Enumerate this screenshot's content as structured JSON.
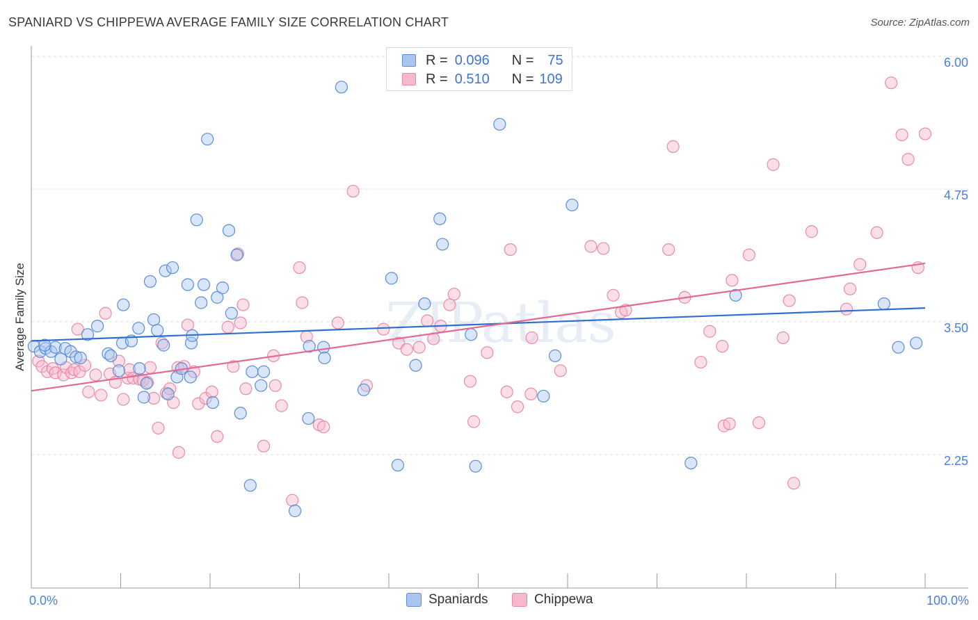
{
  "title": "SPANIARD VS CHIPPEWA AVERAGE FAMILY SIZE CORRELATION CHART",
  "source": "Source: ZipAtlas.com",
  "watermark": "ZIPatlas",
  "colors": {
    "blue_fill": "#aac6f0",
    "blue_stroke": "#5b8dd8",
    "blue_line": "#2f6fd0",
    "pink_fill": "#f6b8cb",
    "pink_stroke": "#e88aa8",
    "pink_line": "#e26a94",
    "grid": "#dddddd",
    "axis_text": "#4a7fd4"
  },
  "legend": {
    "rows": [
      {
        "r_label": "R =",
        "r_value": "0.096",
        "n_label": "N =",
        "n_value": "75"
      },
      {
        "r_label": "R =",
        "r_value": "0.510",
        "n_label": "N =",
        "n_value": "109"
      }
    ]
  },
  "bottom_legend": {
    "series1": "Spaniards",
    "series2": "Chippewa"
  },
  "chart_data": {
    "type": "scatter",
    "title": "SPANIARD VS CHIPPEWA AVERAGE FAMILY SIZE CORRELATION CHART",
    "xlabel": "",
    "ylabel": "Average Family Size",
    "xlim": [
      0,
      100
    ],
    "ylim": [
      1.0,
      6.1
    ],
    "x_tick_labels": [
      "0.0%",
      "100.0%"
    ],
    "y_ticks": [
      2.25,
      3.5,
      4.75,
      6.0
    ],
    "y_tick_labels": [
      "2.25",
      "3.50",
      "4.75",
      "6.00"
    ],
    "grid": "horizontal dashed",
    "series": [
      {
        "name": "Spaniards",
        "trend": {
          "x": [
            0,
            100
          ],
          "y": [
            3.32,
            3.63
          ]
        },
        "points": [
          [
            0.3,
            3.27
          ],
          [
            1.0,
            3.22
          ],
          [
            1.6,
            3.25
          ],
          [
            2.2,
            3.22
          ],
          [
            2.7,
            3.26
          ],
          [
            3.3,
            3.15
          ],
          [
            3.8,
            3.25
          ],
          [
            4.4,
            3.22
          ],
          [
            5.0,
            3.17
          ],
          [
            5.5,
            3.16
          ],
          [
            6.3,
            3.38
          ],
          [
            7.4,
            3.46
          ],
          [
            8.6,
            3.2
          ],
          [
            8.9,
            3.18
          ],
          [
            9.8,
            3.04
          ],
          [
            10.2,
            3.3
          ],
          [
            10.3,
            3.66
          ],
          [
            11.2,
            3.32
          ],
          [
            12.0,
            3.44
          ],
          [
            12.1,
            3.06
          ],
          [
            12.6,
            2.79
          ],
          [
            12.9,
            2.92
          ],
          [
            13.3,
            3.88
          ],
          [
            13.7,
            3.52
          ],
          [
            14.1,
            3.42
          ],
          [
            14.8,
            3.28
          ],
          [
            15.0,
            3.98
          ],
          [
            15.3,
            2.82
          ],
          [
            15.8,
            4.01
          ],
          [
            16.3,
            2.98
          ],
          [
            16.8,
            3.06
          ],
          [
            17.5,
            3.85
          ],
          [
            17.8,
            2.98
          ],
          [
            17.9,
            3.3
          ],
          [
            18.0,
            3.37
          ],
          [
            18.5,
            4.46
          ],
          [
            19.0,
            3.68
          ],
          [
            19.3,
            3.85
          ],
          [
            19.7,
            5.22
          ],
          [
            20.3,
            2.74
          ],
          [
            20.8,
            3.73
          ],
          [
            21.4,
            3.82
          ],
          [
            22.1,
            4.36
          ],
          [
            22.4,
            3.58
          ],
          [
            23.0,
            4.13
          ],
          [
            23.4,
            2.64
          ],
          [
            24.5,
            1.96
          ],
          [
            24.7,
            3.03
          ],
          [
            25.7,
            2.9
          ],
          [
            26.0,
            3.03
          ],
          [
            29.5,
            1.72
          ],
          [
            31.0,
            2.59
          ],
          [
            31.1,
            3.27
          ],
          [
            32.7,
            3.26
          ],
          [
            32.8,
            3.16
          ],
          [
            34.7,
            5.71
          ],
          [
            37.2,
            2.86
          ],
          [
            40.3,
            3.91
          ],
          [
            41.0,
            2.15
          ],
          [
            43.0,
            3.09
          ],
          [
            44.0,
            3.67
          ],
          [
            45.7,
            4.47
          ],
          [
            46.0,
            4.23
          ],
          [
            49.2,
            3.38
          ],
          [
            49.7,
            2.14
          ],
          [
            52.4,
            5.36
          ],
          [
            57.3,
            2.8
          ],
          [
            58.6,
            3.18
          ],
          [
            60.5,
            4.6
          ],
          [
            73.8,
            2.17
          ],
          [
            78.8,
            3.75
          ],
          [
            95.4,
            3.67
          ],
          [
            97.0,
            3.26
          ],
          [
            99.0,
            3.3
          ],
          [
            1.5,
            3.28
          ]
        ]
      },
      {
        "name": "Chippewa",
        "trend": {
          "x": [
            0,
            100
          ],
          "y": [
            2.85,
            4.05
          ]
        },
        "points": [
          [
            0.8,
            3.13
          ],
          [
            1.2,
            3.08
          ],
          [
            1.8,
            3.03
          ],
          [
            2.4,
            3.06
          ],
          [
            2.7,
            3.02
          ],
          [
            3.6,
            3.0
          ],
          [
            3.9,
            3.07
          ],
          [
            4.5,
            3.02
          ],
          [
            4.8,
            3.05
          ],
          [
            5.2,
            3.43
          ],
          [
            5.4,
            3.03
          ],
          [
            6.0,
            3.09
          ],
          [
            6.4,
            2.84
          ],
          [
            7.2,
            3.0
          ],
          [
            7.8,
            2.81
          ],
          [
            8.3,
            3.58
          ],
          [
            8.8,
            3.01
          ],
          [
            9.4,
            2.93
          ],
          [
            9.8,
            3.13
          ],
          [
            10.3,
            2.77
          ],
          [
            10.8,
            2.97
          ],
          [
            11.0,
            3.05
          ],
          [
            11.4,
            2.97
          ],
          [
            12.1,
            2.96
          ],
          [
            12.5,
            2.95
          ],
          [
            13.0,
            2.93
          ],
          [
            13.3,
            3.07
          ],
          [
            13.7,
            2.78
          ],
          [
            14.2,
            2.5
          ],
          [
            14.6,
            3.3
          ],
          [
            15.1,
            2.83
          ],
          [
            15.5,
            2.87
          ],
          [
            15.9,
            2.74
          ],
          [
            16.4,
            3.07
          ],
          [
            16.5,
            2.27
          ],
          [
            17.1,
            3.08
          ],
          [
            17.5,
            3.47
          ],
          [
            18.2,
            3.03
          ],
          [
            18.7,
            2.73
          ],
          [
            19.5,
            2.78
          ],
          [
            20.2,
            2.84
          ],
          [
            20.8,
            2.42
          ],
          [
            22.0,
            3.45
          ],
          [
            22.6,
            3.08
          ],
          [
            23.1,
            4.14
          ],
          [
            23.4,
            3.49
          ],
          [
            23.7,
            3.66
          ],
          [
            24.0,
            2.87
          ],
          [
            26.0,
            2.33
          ],
          [
            27.1,
            3.18
          ],
          [
            27.3,
            2.9
          ],
          [
            28.0,
            2.71
          ],
          [
            29.2,
            1.82
          ],
          [
            30.0,
            4.01
          ],
          [
            30.3,
            3.68
          ],
          [
            30.8,
            3.36
          ],
          [
            32.2,
            2.53
          ],
          [
            32.7,
            2.51
          ],
          [
            34.3,
            3.49
          ],
          [
            36.0,
            4.73
          ],
          [
            37.5,
            2.9
          ],
          [
            39.4,
            3.43
          ],
          [
            41.1,
            3.3
          ],
          [
            42.0,
            3.24
          ],
          [
            43.4,
            3.26
          ],
          [
            44.3,
            3.51
          ],
          [
            45.0,
            3.34
          ],
          [
            45.8,
            3.46
          ],
          [
            46.8,
            3.66
          ],
          [
            47.3,
            3.76
          ],
          [
            49.1,
            2.94
          ],
          [
            49.5,
            2.56
          ],
          [
            51.0,
            3.21
          ],
          [
            53.2,
            2.84
          ],
          [
            53.6,
            4.18
          ],
          [
            54.4,
            2.7
          ],
          [
            55.9,
            2.82
          ],
          [
            56.0,
            3.35
          ],
          [
            59.2,
            3.04
          ],
          [
            62.6,
            4.21
          ],
          [
            64.0,
            4.19
          ],
          [
            65.1,
            3.75
          ],
          [
            66.0,
            3.59
          ],
          [
            66.5,
            3.61
          ],
          [
            71.3,
            4.18
          ],
          [
            71.8,
            5.15
          ],
          [
            73.1,
            3.73
          ],
          [
            74.9,
            3.12
          ],
          [
            75.9,
            3.41
          ],
          [
            77.3,
            3.27
          ],
          [
            77.5,
            2.52
          ],
          [
            78.1,
            2.54
          ],
          [
            78.4,
            3.89
          ],
          [
            80.3,
            4.13
          ],
          [
            81.4,
            2.55
          ],
          [
            83.0,
            4.98
          ],
          [
            84.1,
            3.35
          ],
          [
            84.8,
            3.7
          ],
          [
            85.3,
            1.98
          ],
          [
            87.3,
            4.35
          ],
          [
            91.2,
            3.62
          ],
          [
            91.6,
            3.81
          ],
          [
            92.7,
            4.04
          ],
          [
            94.6,
            4.34
          ],
          [
            96.2,
            5.75
          ],
          [
            97.4,
            5.26
          ],
          [
            98.1,
            5.03
          ],
          [
            99.2,
            4.01
          ],
          [
            100.0,
            5.27
          ]
        ]
      }
    ]
  }
}
